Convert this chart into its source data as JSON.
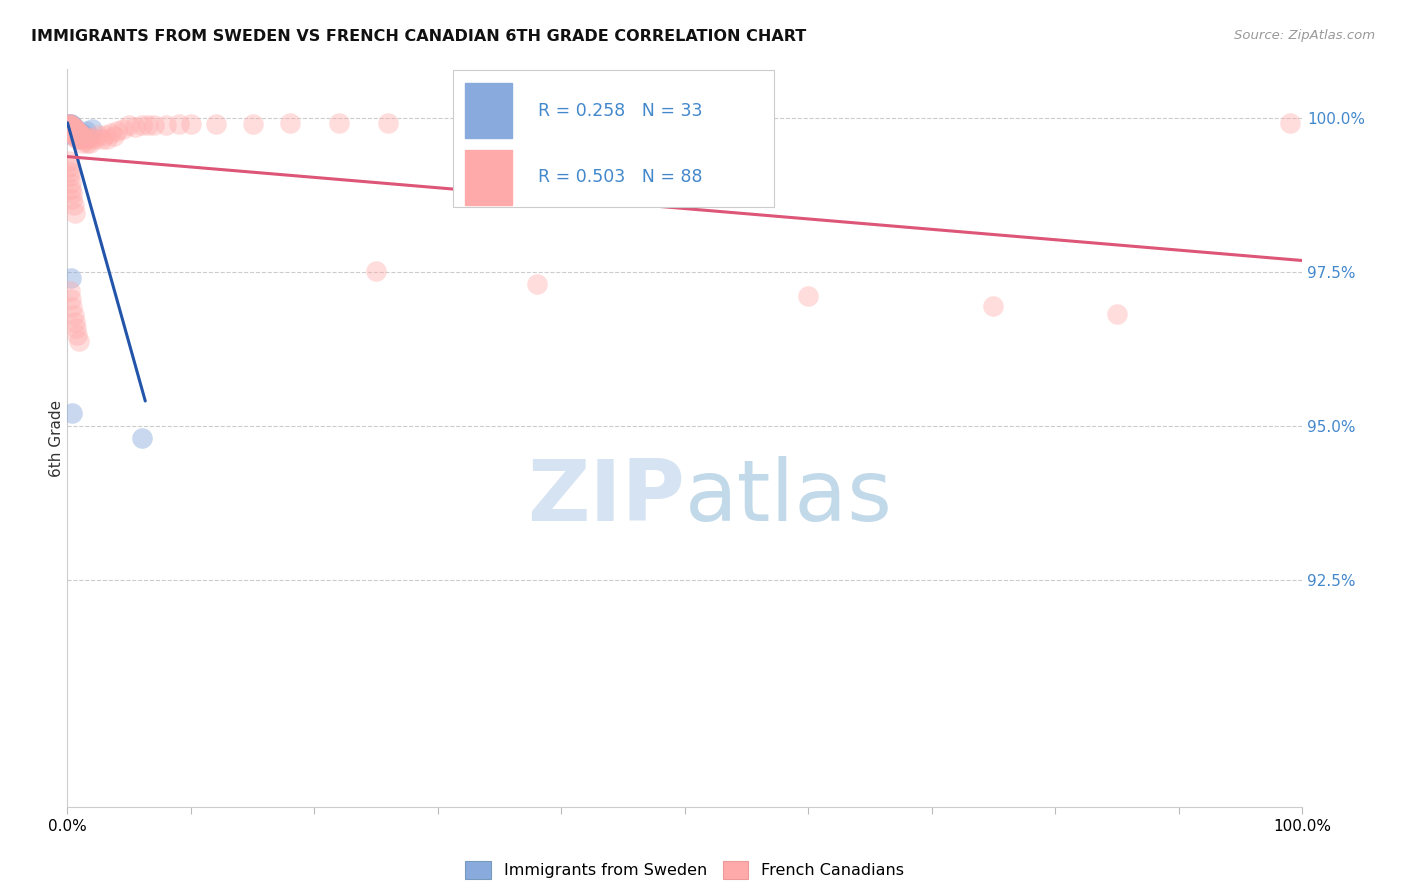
{
  "title": "IMMIGRANTS FROM SWEDEN VS FRENCH CANADIAN 6TH GRADE CORRELATION CHART",
  "source": "Source: ZipAtlas.com",
  "ylabel": "6th Grade",
  "color_sweden": "#88AADD",
  "color_french": "#FFAAAA",
  "color_line_sweden": "#2255AA",
  "color_line_french": "#DD5577",
  "color_yticks": "#4488CC",
  "legend_label_sweden": "Immigrants from Sweden",
  "legend_label_french": "French Canadians",
  "legend_r1": "R = 0.258",
  "legend_n1": "N = 33",
  "legend_r2": "R = 0.503",
  "legend_n2": "N = 88",
  "xmin": 0.0,
  "xmax": 1.0,
  "ymin": 0.888,
  "ymax": 1.008,
  "sweden_x": [
    0.001,
    0.001,
    0.001,
    0.002,
    0.002,
    0.002,
    0.002,
    0.002,
    0.003,
    0.003,
    0.003,
    0.003,
    0.003,
    0.003,
    0.004,
    0.004,
    0.004,
    0.004,
    0.004,
    0.005,
    0.005,
    0.005,
    0.006,
    0.006,
    0.007,
    0.008,
    0.01,
    0.012,
    0.015,
    0.02,
    0.003,
    0.004,
    0.06
  ],
  "sweden_y": [
    0.999,
    0.9988,
    0.9985,
    0.999,
    0.9988,
    0.9985,
    0.9983,
    0.998,
    0.999,
    0.9987,
    0.9984,
    0.998,
    0.9977,
    0.9975,
    0.9988,
    0.9984,
    0.998,
    0.9976,
    0.9972,
    0.9985,
    0.998,
    0.9975,
    0.998,
    0.9975,
    0.9978,
    0.9978,
    0.9975,
    0.9975,
    0.9978,
    0.9982,
    0.974,
    0.952,
    0.948
  ],
  "french_x": [
    0.001,
    0.001,
    0.001,
    0.002,
    0.002,
    0.002,
    0.002,
    0.003,
    0.003,
    0.003,
    0.003,
    0.004,
    0.004,
    0.004,
    0.004,
    0.005,
    0.005,
    0.005,
    0.005,
    0.006,
    0.006,
    0.006,
    0.007,
    0.007,
    0.007,
    0.008,
    0.008,
    0.008,
    0.009,
    0.009,
    0.01,
    0.01,
    0.011,
    0.012,
    0.012,
    0.013,
    0.014,
    0.015,
    0.016,
    0.017,
    0.018,
    0.02,
    0.022,
    0.025,
    0.028,
    0.03,
    0.032,
    0.035,
    0.038,
    0.04,
    0.045,
    0.05,
    0.055,
    0.06,
    0.065,
    0.07,
    0.08,
    0.09,
    0.1,
    0.12,
    0.15,
    0.18,
    0.22,
    0.26,
    0.001,
    0.001,
    0.002,
    0.002,
    0.003,
    0.003,
    0.004,
    0.004,
    0.005,
    0.006,
    0.25,
    0.38,
    0.6,
    0.75,
    0.85,
    0.99,
    0.002,
    0.003,
    0.004,
    0.005,
    0.006,
    0.007,
    0.008,
    0.009
  ],
  "french_y": [
    0.999,
    0.9988,
    0.9985,
    0.999,
    0.9988,
    0.9985,
    0.9982,
    0.9988,
    0.9985,
    0.9982,
    0.9978,
    0.9986,
    0.9982,
    0.9978,
    0.9974,
    0.9985,
    0.9982,
    0.9978,
    0.9974,
    0.9982,
    0.9978,
    0.9972,
    0.998,
    0.9975,
    0.9968,
    0.9978,
    0.9972,
    0.9965,
    0.9975,
    0.9968,
    0.9975,
    0.9965,
    0.9972,
    0.9968,
    0.996,
    0.9968,
    0.9962,
    0.9968,
    0.996,
    0.9968,
    0.996,
    0.9968,
    0.9965,
    0.9972,
    0.9965,
    0.9972,
    0.9965,
    0.9975,
    0.997,
    0.9978,
    0.9982,
    0.9988,
    0.9985,
    0.9988,
    0.9988,
    0.9988,
    0.9988,
    0.999,
    0.999,
    0.999,
    0.999,
    0.9992,
    0.9992,
    0.9992,
    0.993,
    0.992,
    0.9912,
    0.9905,
    0.9895,
    0.9885,
    0.9878,
    0.9868,
    0.9858,
    0.9845,
    0.9752,
    0.973,
    0.971,
    0.9695,
    0.9682,
    0.9992,
    0.9718,
    0.9705,
    0.9692,
    0.968,
    0.9668,
    0.9658,
    0.9648,
    0.9638
  ]
}
